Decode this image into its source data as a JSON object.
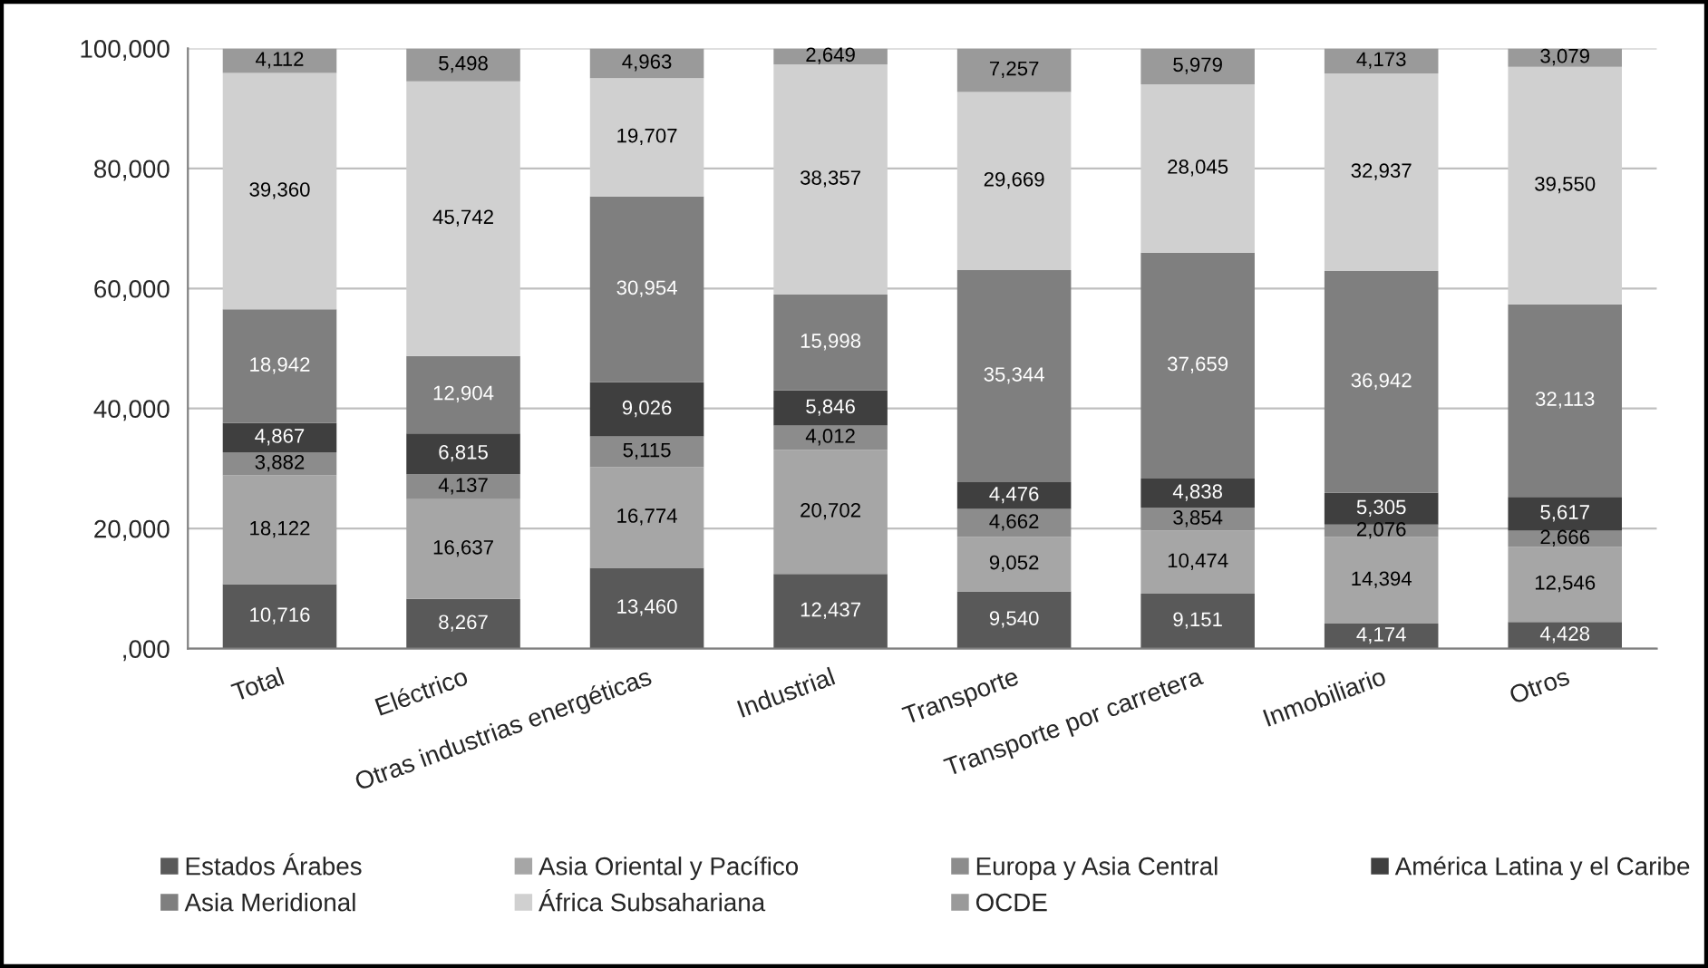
{
  "chart_data": {
    "type": "bar",
    "stacked": true,
    "categories": [
      "Total",
      "Eléctrico",
      "Otras industrias energéticas",
      "Industrial",
      "Transporte",
      "Transporte por carretera",
      "Inmobiliario",
      "Otros"
    ],
    "series": [
      {
        "name": "Estados Árabes",
        "color": "#595959",
        "values": [
          10716,
          8267,
          13460,
          12437,
          9540,
          9151,
          4174,
          4428
        ],
        "value_labels": [
          "10,716",
          "8,267",
          "13,460",
          "12,437",
          "9,540",
          "9,151",
          "4,174",
          "4,428"
        ]
      },
      {
        "name": "Asia Oriental y Pacífico",
        "color": "#a6a6a6",
        "values": [
          18122,
          16637,
          16774,
          20702,
          9052,
          10474,
          14394,
          12546
        ],
        "value_labels": [
          "18,122",
          "16,637",
          "16,774",
          "20,702",
          "9,052",
          "10,474",
          "14,394",
          "12,546"
        ]
      },
      {
        "name": "Europa y Asia Central",
        "color": "#8c8c8c",
        "values": [
          3882,
          4137,
          5115,
          4012,
          4662,
          3854,
          2076,
          2666
        ],
        "value_labels": [
          "3,882",
          "4,137",
          "5,115",
          "4,012",
          "4,662",
          "3,854",
          "2,076",
          "2,666"
        ]
      },
      {
        "name": "América Latina y el Caribe",
        "color": "#3f3f3f",
        "values": [
          4867,
          6815,
          9026,
          5846,
          4476,
          4838,
          5305,
          5617
        ],
        "value_labels": [
          "4,867",
          "6,815",
          "9,026",
          "5,846",
          "4,476",
          "4,838",
          "5,305",
          "5,617"
        ]
      },
      {
        "name": "Asia Meridional",
        "color": "#7f7f7f",
        "values": [
          18942,
          12904,
          30954,
          15998,
          35344,
          37659,
          36942,
          32113
        ],
        "value_labels": [
          "18,942",
          "12,904",
          "30,954",
          "15,998",
          "35,344",
          "37,659",
          "36,942",
          "32,113"
        ]
      },
      {
        "name": "África Subsahariana",
        "color": "#d0d0d0",
        "values": [
          39360,
          45742,
          19707,
          38357,
          29669,
          28045,
          32937,
          39550
        ],
        "value_labels": [
          "39,360",
          "45,742",
          "19,707",
          "38,357",
          "29,669",
          "28,045",
          "32,937",
          "39,550"
        ]
      },
      {
        "name": "OCDE",
        "color": "#9a9a9a",
        "values": [
          4112,
          5498,
          4963,
          2649,
          7257,
          5979,
          4173,
          3079
        ],
        "value_labels": [
          "4,112",
          "5,498",
          "4,963",
          "2,649",
          "7,257",
          "5,979",
          "4,173",
          "3,079"
        ]
      }
    ],
    "ylim": [
      0,
      100000
    ],
    "yticks": [
      {
        "value": 0,
        "label": ",000"
      },
      {
        "value": 20000,
        "label": "20,000"
      },
      {
        "value": 40000,
        "label": "40,000"
      },
      {
        "value": 60000,
        "label": "60,000"
      },
      {
        "value": 80000,
        "label": "80,000"
      },
      {
        "value": 100000,
        "label": "100,000"
      }
    ],
    "grid": "y",
    "legend": "bottom"
  }
}
